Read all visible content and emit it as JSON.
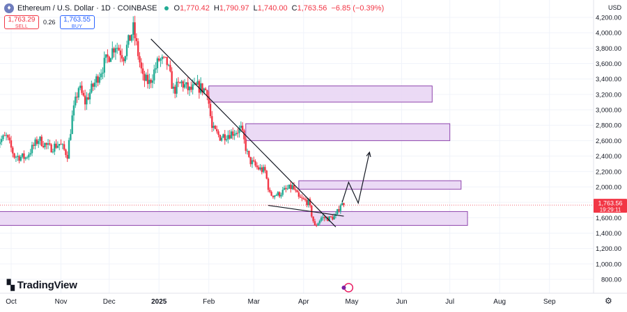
{
  "header": {
    "title": "Ethereum / U.S. Dollar · 1D · COINBASE",
    "open_key": "O",
    "open": "1,770.42",
    "high_key": "H",
    "high": "1,790.97",
    "low_key": "L",
    "low": "1,740.00",
    "close_key": "C",
    "close": "1,763.56",
    "change": "−6.85 (−0.39%)"
  },
  "trade": {
    "sell_price": "1,763.29",
    "sell_label": "SELL",
    "spread": "0.26",
    "buy_price": "1,763.55",
    "buy_label": "BUY"
  },
  "brand": "TradingView",
  "currency": "USD",
  "colors": {
    "up": "#22ab94",
    "down": "#f23645",
    "zone_fill": "#e8d3f3",
    "zone_stroke": "#8e44ad",
    "line": "#131722",
    "price_tag": "#f23645"
  },
  "chart_data": {
    "type": "candlestick",
    "symbol": "Ethereum / U.S. Dollar",
    "interval": "1D",
    "exchange": "COINBASE",
    "y_ticks": [
      4200,
      4000,
      3800,
      3600,
      3400,
      3200,
      3000,
      2800,
      2600,
      2400,
      2200,
      2000,
      1800,
      1600,
      1400,
      1200,
      1000,
      800
    ],
    "y_tick_labels": [
      "4,200.00",
      "4,000.00",
      "3,800.00",
      "3,600.00",
      "3,400.00",
      "3,200.00",
      "3,000.00",
      "2,800.00",
      "2,600.00",
      "2,400.00",
      "2,200.00",
      "2,000.00",
      "1,800.00",
      "1,600.00",
      "1,400.00",
      "1,200.00",
      "1,000.00",
      "800.00"
    ],
    "x_ticks": [
      {
        "label": "Oct",
        "date": "2024-10-01"
      },
      {
        "label": "Nov",
        "date": "2024-11-01"
      },
      {
        "label": "Dec",
        "date": "2024-12-01"
      },
      {
        "label": "2025",
        "date": "2025-01-01"
      },
      {
        "label": "Feb",
        "date": "2025-02-01"
      },
      {
        "label": "Mar",
        "date": "2025-03-01"
      },
      {
        "label": "Apr",
        "date": "2025-04-01"
      },
      {
        "label": "May",
        "date": "2025-05-01"
      },
      {
        "label": "Jun",
        "date": "2025-06-01"
      },
      {
        "label": "Jul",
        "date": "2025-07-01"
      },
      {
        "label": "Aug",
        "date": "2025-08-01"
      },
      {
        "label": "Sep",
        "date": "2025-09-01"
      }
    ],
    "price_path": [
      [
        "2024-09-22",
        2580
      ],
      [
        "2024-09-28",
        2650
      ],
      [
        "2024-10-03",
        2400
      ],
      [
        "2024-10-10",
        2380
      ],
      [
        "2024-10-18",
        2620
      ],
      [
        "2024-10-25",
        2500
      ],
      [
        "2024-10-31",
        2560
      ],
      [
        "2024-11-05",
        2420
      ],
      [
        "2024-11-08",
        2900
      ],
      [
        "2024-11-12",
        3300
      ],
      [
        "2024-11-16",
        3100
      ],
      [
        "2024-11-22",
        3350
      ],
      [
        "2024-11-28",
        3600
      ],
      [
        "2024-12-05",
        3850
      ],
      [
        "2024-12-10",
        3700
      ],
      [
        "2024-12-16",
        4050
      ],
      [
        "2024-12-22",
        3400
      ],
      [
        "2024-12-26",
        3350
      ],
      [
        "2025-01-01",
        3650
      ],
      [
        "2025-01-06",
        3600
      ],
      [
        "2025-01-10",
        3250
      ],
      [
        "2025-01-15",
        3350
      ],
      [
        "2025-01-20",
        3250
      ],
      [
        "2025-01-25",
        3300
      ],
      [
        "2025-01-31",
        3250
      ],
      [
        "2025-02-03",
        2750
      ],
      [
        "2025-02-08",
        2650
      ],
      [
        "2025-02-15",
        2700
      ],
      [
        "2025-02-21",
        2750
      ],
      [
        "2025-02-26",
        2350
      ],
      [
        "2025-03-03",
        2250
      ],
      [
        "2025-03-08",
        2200
      ],
      [
        "2025-03-11",
        1900
      ],
      [
        "2025-03-16",
        1900
      ],
      [
        "2025-03-20",
        1950
      ],
      [
        "2025-03-25",
        2000
      ],
      [
        "2025-03-29",
        1850
      ],
      [
        "2025-04-04",
        1800
      ],
      [
        "2025-04-08",
        1480
      ],
      [
        "2025-04-12",
        1600
      ],
      [
        "2025-04-17",
        1590
      ],
      [
        "2025-04-21",
        1620
      ],
      [
        "2025-04-24",
        1780
      ],
      [
        "2025-04-26",
        1763.56
      ]
    ],
    "zones": [
      {
        "from": "2025-02-01",
        "to": "2025-06-20",
        "low": 3100,
        "high": 3310
      },
      {
        "from": "2025-02-24",
        "to": "2025-07-01",
        "low": 2600,
        "high": 2820
      },
      {
        "from": "2025-03-29",
        "to": "2025-07-08",
        "low": 1970,
        "high": 2080
      },
      {
        "from": "2024-09-22",
        "to": "2025-07-12",
        "low": 1500,
        "high": 1680
      }
    ],
    "trendlines": [
      {
        "from": [
          "2024-12-27",
          3920
        ],
        "to": [
          "2025-04-21",
          1480
        ]
      },
      {
        "from": [
          "2025-03-10",
          1760
        ],
        "to": [
          "2025-04-26",
          1620
        ]
      }
    ],
    "projection": [
      [
        "2025-04-25",
        1800
      ],
      [
        "2025-04-29",
        2060
      ],
      [
        "2025-05-05",
        1790
      ],
      [
        "2025-05-12",
        2450
      ]
    ],
    "current_price": 1763.56,
    "current_price_label": "1,763.56",
    "countdown": "19:29:11"
  }
}
